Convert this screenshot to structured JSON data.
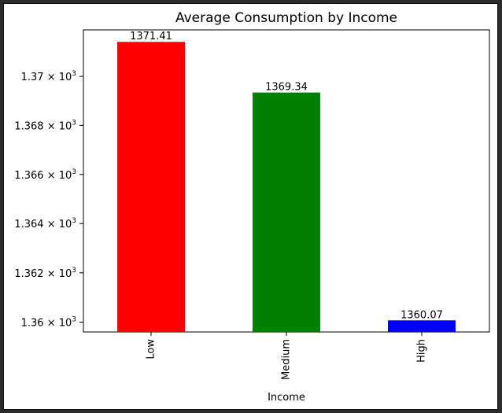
{
  "chart_data": {
    "type": "bar",
    "title": "Average Consumption by Income",
    "xlabel": "Income",
    "ylabel": "",
    "categories": [
      "Low",
      "Medium",
      "High"
    ],
    "values": [
      1371.41,
      1369.34,
      1360.07
    ],
    "data_labels": [
      "1371.41",
      "1369.34",
      "1360.07"
    ],
    "colors": [
      "#ff0000",
      "#008000",
      "#0000ff"
    ],
    "ylim": [
      1359.6,
      1371.9
    ],
    "yscale": "log",
    "yticks": [
      1360,
      1362,
      1364,
      1366,
      1368,
      1370
    ],
    "ytick_labels": [
      {
        "mantissa": "1.36",
        "exponent": "3"
      },
      {
        "mantissa": "1.362",
        "exponent": "3"
      },
      {
        "mantissa": "1.364",
        "exponent": "3"
      },
      {
        "mantissa": "1.366",
        "exponent": "3"
      },
      {
        "mantissa": "1.368",
        "exponent": "3"
      },
      {
        "mantissa": "1.37",
        "exponent": "3"
      }
    ],
    "grid": false,
    "legend": "none"
  }
}
